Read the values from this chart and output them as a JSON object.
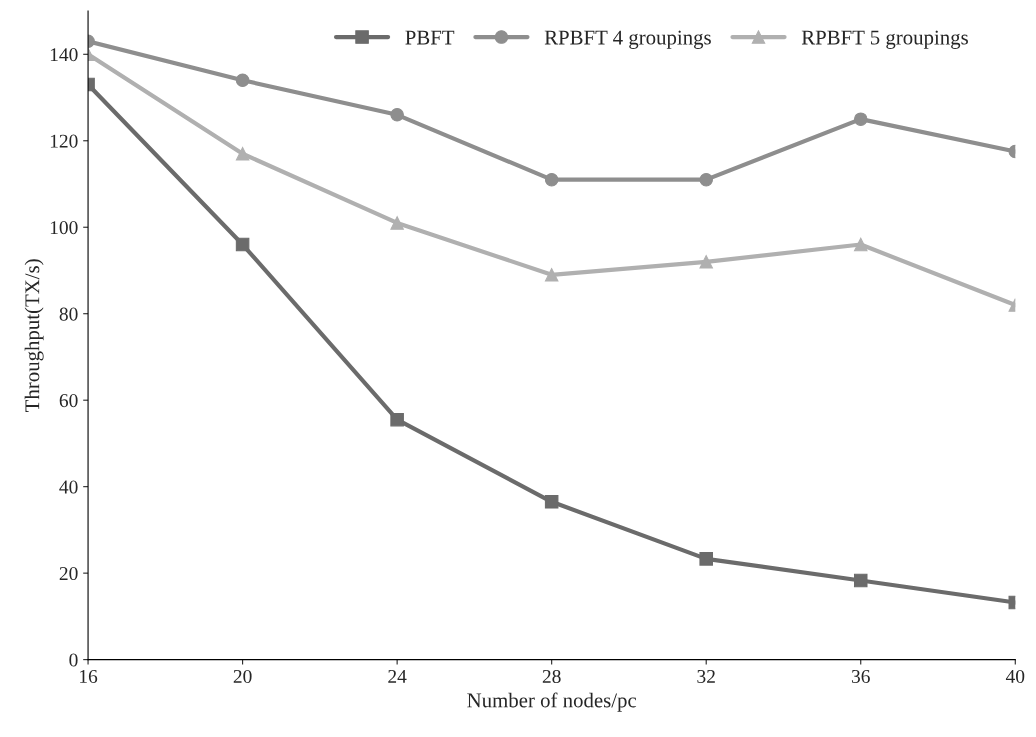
{
  "chart_data": {
    "type": "line",
    "xlabel": "Number of nodes/pc",
    "ylabel": "Throughput(TX/s)",
    "x": [
      16,
      20,
      24,
      28,
      32,
      36,
      40
    ],
    "series": [
      {
        "name": "PBFT",
        "color": "#6b6b6b",
        "marker": "square",
        "values": [
          133,
          96,
          55.5,
          36.5,
          23.3,
          18.3,
          13.2
        ]
      },
      {
        "name": "RPBFT 4 groupings",
        "color": "#8e8e8e",
        "marker": "circle",
        "values": [
          143,
          134,
          126,
          111,
          111,
          125,
          117.5
        ]
      },
      {
        "name": "RPBFT 5 groupings",
        "color": "#b0b0b0",
        "marker": "triangle",
        "values": [
          140,
          117,
          101,
          89,
          92,
          96,
          82
        ]
      }
    ],
    "xlim": [
      16,
      40
    ],
    "xticks": [
      16,
      20,
      24,
      28,
      32,
      36,
      40
    ],
    "ylim": [
      0,
      150
    ],
    "yticks": [
      0,
      20,
      40,
      60,
      80,
      100,
      120,
      140
    ],
    "line_style": "solid",
    "grid": false,
    "legend": "top right"
  }
}
